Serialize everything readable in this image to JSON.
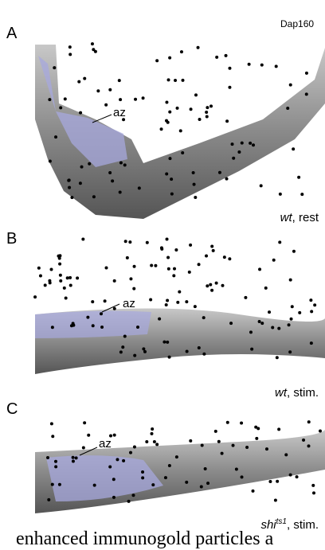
{
  "header": {
    "marker": "Dap160"
  },
  "panels": [
    {
      "letter": "A",
      "az": "az",
      "condition": {
        "italic": "wt",
        "rest": ", rest"
      }
    },
    {
      "letter": "B",
      "az": "az",
      "condition": {
        "italic": "wt",
        "rest": ", stim."
      }
    },
    {
      "letter": "C",
      "az": "az",
      "condition": {
        "italic": "shi",
        "superscript": "ts1",
        "rest": ", stim."
      }
    }
  ],
  "caption": "enhanced immunogold particles a"
}
